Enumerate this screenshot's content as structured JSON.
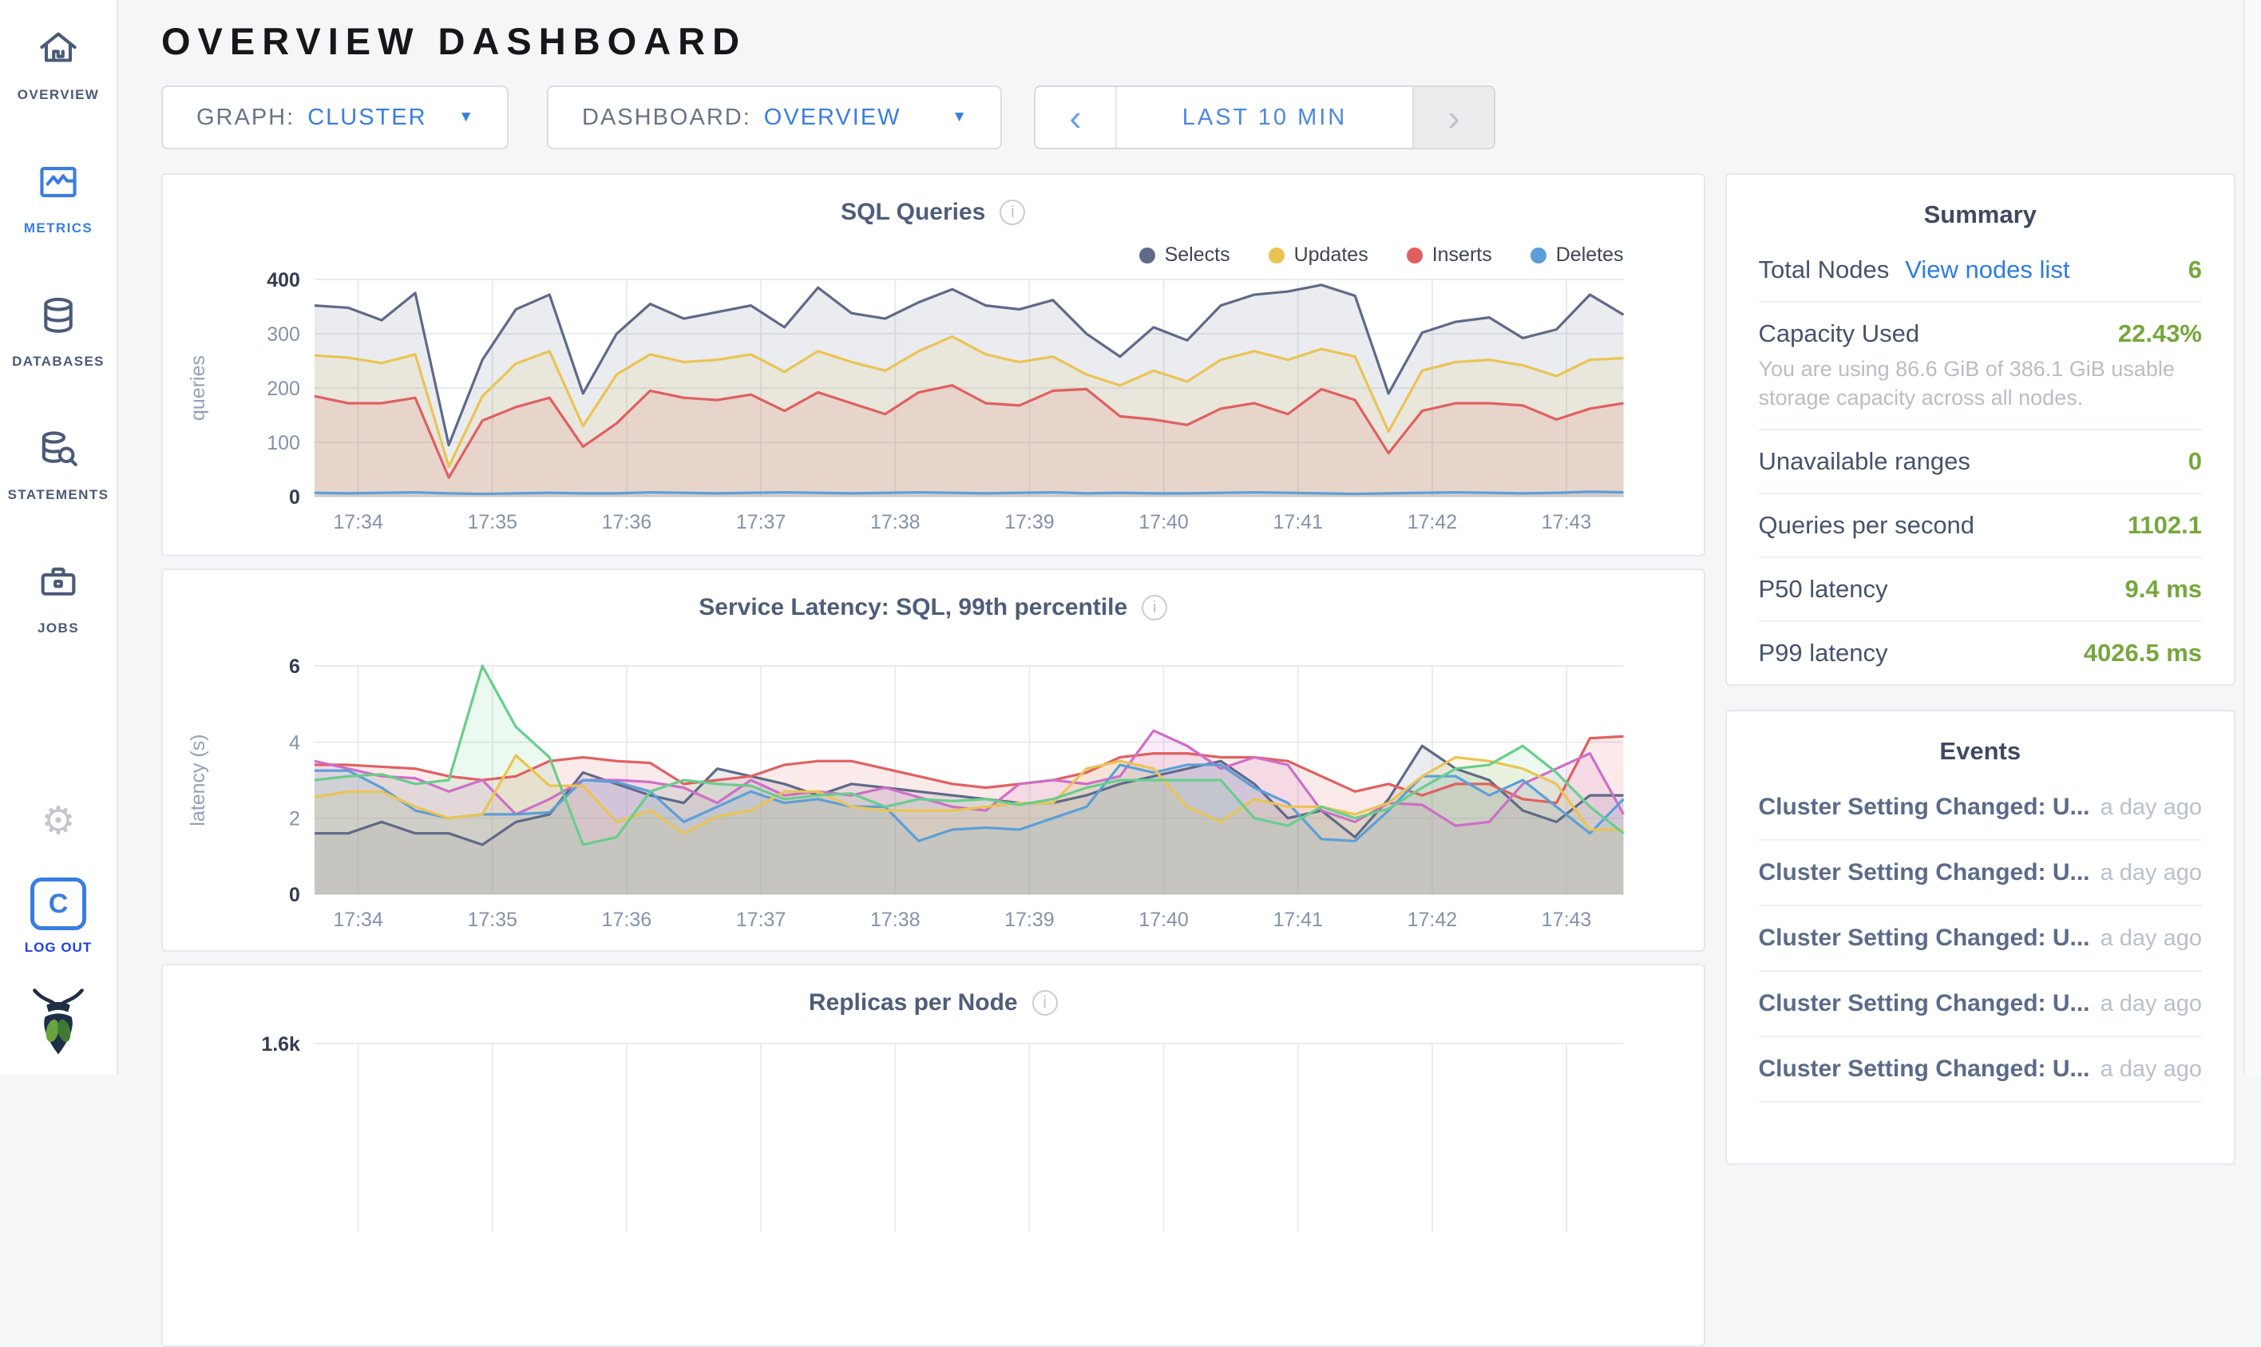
{
  "app": {
    "title": "OVERVIEW DASHBOARD"
  },
  "sidebar": {
    "items": [
      {
        "label": "OVERVIEW",
        "icon": "home-icon",
        "active": false
      },
      {
        "label": "METRICS",
        "icon": "metrics-icon",
        "active": true
      },
      {
        "label": "DATABASES",
        "icon": "databases-icon",
        "active": false
      },
      {
        "label": "STATEMENTS",
        "icon": "statements-icon",
        "active": false
      },
      {
        "label": "JOBS",
        "icon": "jobs-icon",
        "active": false
      }
    ],
    "logout_label": "LOG OUT",
    "logout_monogram": "C"
  },
  "toolbar": {
    "graph_label": "GRAPH:",
    "graph_value": "CLUSTER",
    "dashboard_label": "DASHBOARD:",
    "dashboard_value": "OVERVIEW",
    "time_range": "LAST 10 MIN",
    "prev_arrow": "‹",
    "next_arrow": "›"
  },
  "summary": {
    "title": "Summary",
    "total_nodes_label": "Total Nodes",
    "total_nodes_link": "View nodes list",
    "total_nodes_value": "6",
    "capacity_label": "Capacity Used",
    "capacity_value": "22.43%",
    "capacity_subtext": "You are using 86.6 GiB of 386.1 GiB usable storage capacity across all nodes.",
    "unavailable_label": "Unavailable ranges",
    "unavailable_value": "0",
    "qps_label": "Queries per second",
    "qps_value": "1102.1",
    "p50_label": "P50 latency",
    "p50_value": "9.4 ms",
    "p99_label": "P99 latency",
    "p99_value": "4026.5 ms"
  },
  "events": {
    "title": "Events",
    "rows": [
      {
        "text": "Cluster Setting Changed: U...",
        "time": "a day ago"
      },
      {
        "text": "Cluster Setting Changed: U...",
        "time": "a day ago"
      },
      {
        "text": "Cluster Setting Changed: U...",
        "time": "a day ago"
      },
      {
        "text": "Cluster Setting Changed: U...",
        "time": "a day ago"
      },
      {
        "text": "Cluster Setting Changed: U...",
        "time": "a day ago"
      }
    ]
  },
  "colors": {
    "accent_blue": "#3a7de1",
    "value_green": "#76a73c",
    "selects": "#5f6a88",
    "updates": "#eac453",
    "inserts": "#e06060",
    "deletes": "#5c9fd8",
    "latency_slate": "#5f6a88",
    "latency_red": "#e06060",
    "latency_magenta": "#cd6fc8",
    "latency_blue": "#5c9fd8",
    "latency_yellow": "#eac453",
    "latency_green": "#67ce8c"
  },
  "chart_data": [
    {
      "id": "sql",
      "type": "area",
      "title": "SQL Queries",
      "ylabel": "queries",
      "ylim": [
        0,
        400
      ],
      "y_ticks": [
        {
          "v": 0,
          "label": "0"
        },
        {
          "v": 100,
          "label": "100"
        },
        {
          "v": 200,
          "label": "200"
        },
        {
          "v": 300,
          "label": "300"
        },
        {
          "v": 400,
          "label": "400"
        }
      ],
      "x_ticks": [
        {
          "i": 1.3,
          "label": "17:34"
        },
        {
          "i": 5.3,
          "label": "17:35"
        },
        {
          "i": 9.3,
          "label": "17:36"
        },
        {
          "i": 13.3,
          "label": "17:37"
        },
        {
          "i": 17.3,
          "label": "17:38"
        },
        {
          "i": 21.3,
          "label": "17:39"
        },
        {
          "i": 25.3,
          "label": "17:40"
        },
        {
          "i": 29.3,
          "label": "17:41"
        },
        {
          "i": 33.3,
          "label": "17:42"
        },
        {
          "i": 37.3,
          "label": "17:43"
        }
      ],
      "legend_position": "top-right",
      "grid": true,
      "series": [
        {
          "name": "Selects",
          "color": "#5f6a88",
          "values": [
            352,
            348,
            325,
            375,
            95,
            252,
            345,
            372,
            190,
            300,
            355,
            328,
            340,
            352,
            312,
            385,
            338,
            328,
            358,
            382,
            352,
            345,
            362,
            300,
            258,
            312,
            288,
            352,
            372,
            378,
            390,
            370,
            190,
            302,
            322,
            330,
            292,
            308,
            372,
            335
          ]
        },
        {
          "name": "Updates",
          "color": "#eac453",
          "values": [
            260,
            256,
            246,
            262,
            55,
            185,
            245,
            268,
            130,
            225,
            262,
            248,
            252,
            262,
            230,
            268,
            248,
            232,
            268,
            295,
            262,
            248,
            258,
            225,
            205,
            232,
            212,
            252,
            268,
            252,
            272,
            258,
            120,
            232,
            248,
            252,
            242,
            222,
            252,
            255
          ]
        },
        {
          "name": "Inserts",
          "color": "#e06060",
          "values": [
            185,
            172,
            172,
            182,
            35,
            140,
            165,
            182,
            92,
            135,
            195,
            182,
            178,
            188,
            158,
            192,
            172,
            152,
            192,
            205,
            172,
            168,
            195,
            198,
            148,
            142,
            132,
            162,
            172,
            152,
            198,
            178,
            80,
            158,
            172,
            172,
            168,
            142,
            162,
            172
          ]
        },
        {
          "name": "Deletes",
          "color": "#5c9fd8",
          "values": [
            7,
            6,
            7,
            8,
            6,
            5,
            6,
            7,
            6,
            6,
            8,
            7,
            6,
            7,
            8,
            7,
            6,
            7,
            8,
            7,
            6,
            7,
            8,
            6,
            7,
            6,
            6,
            7,
            8,
            7,
            6,
            5,
            6,
            7,
            8,
            7,
            6,
            7,
            9,
            8
          ]
        }
      ]
    },
    {
      "id": "latency",
      "type": "area",
      "title": "Service Latency: SQL, 99th percentile",
      "ylabel": "latency (s)",
      "ylim": [
        0,
        6
      ],
      "y_ticks": [
        {
          "v": 0,
          "label": "0"
        },
        {
          "v": 2,
          "label": "2"
        },
        {
          "v": 4,
          "label": "4"
        },
        {
          "v": 6,
          "label": "6"
        }
      ],
      "x_ticks": [
        {
          "i": 1.3,
          "label": "17:34"
        },
        {
          "i": 5.3,
          "label": "17:35"
        },
        {
          "i": 9.3,
          "label": "17:36"
        },
        {
          "i": 13.3,
          "label": "17:37"
        },
        {
          "i": 17.3,
          "label": "17:38"
        },
        {
          "i": 21.3,
          "label": "17:39"
        },
        {
          "i": 25.3,
          "label": "17:40"
        },
        {
          "i": 29.3,
          "label": "17:41"
        },
        {
          "i": 33.3,
          "label": "17:42"
        },
        {
          "i": 37.3,
          "label": "17:43"
        }
      ],
      "legend_position": "none",
      "grid": true,
      "series": [
        {
          "color": "#5f6a88",
          "values": [
            1.6,
            1.6,
            1.9,
            1.6,
            1.6,
            1.3,
            1.9,
            2.1,
            3.2,
            2.9,
            2.6,
            2.4,
            3.3,
            3.1,
            2.9,
            2.6,
            2.9,
            2.8,
            2.7,
            2.6,
            2.5,
            2.4,
            2.4,
            2.6,
            2.9,
            3.1,
            3.3,
            3.5,
            2.9,
            2.0,
            2.2,
            1.5,
            2.5,
            3.9,
            3.3,
            3.0,
            2.2,
            1.9,
            2.6,
            2.6
          ]
        },
        {
          "color": "#e06060",
          "values": [
            3.4,
            3.4,
            3.35,
            3.3,
            3.1,
            3.0,
            3.1,
            3.5,
            3.6,
            3.5,
            3.45,
            2.9,
            3.0,
            3.1,
            3.4,
            3.5,
            3.5,
            3.3,
            3.1,
            2.9,
            2.8,
            2.9,
            3.0,
            3.2,
            3.6,
            3.7,
            3.7,
            3.6,
            3.6,
            3.5,
            3.1,
            2.7,
            2.9,
            2.6,
            2.9,
            2.9,
            2.5,
            2.4,
            4.1,
            4.15
          ]
        },
        {
          "color": "#cd6fc8",
          "values": [
            3.5,
            3.3,
            3.1,
            3.05,
            2.7,
            3.0,
            2.1,
            2.5,
            3.0,
            3.0,
            2.95,
            2.8,
            2.4,
            3.0,
            2.6,
            2.7,
            2.6,
            2.8,
            2.55,
            2.3,
            2.2,
            2.9,
            3.0,
            2.9,
            3.1,
            4.3,
            3.9,
            3.3,
            3.6,
            3.4,
            2.2,
            1.9,
            2.4,
            2.35,
            1.8,
            1.9,
            2.9,
            3.3,
            3.7,
            2.1
          ]
        },
        {
          "color": "#5c9fd8",
          "values": [
            3.25,
            3.25,
            2.8,
            2.2,
            2.0,
            2.1,
            2.1,
            2.15,
            3.0,
            2.95,
            2.7,
            1.9,
            2.3,
            2.7,
            2.4,
            2.5,
            2.3,
            2.3,
            1.4,
            1.7,
            1.75,
            1.7,
            2.0,
            2.3,
            3.4,
            3.2,
            3.4,
            3.4,
            2.8,
            2.4,
            1.45,
            1.4,
            2.2,
            3.1,
            3.1,
            2.6,
            3.0,
            2.3,
            1.6,
            2.5
          ]
        },
        {
          "color": "#eac453",
          "values": [
            2.55,
            2.7,
            2.7,
            2.3,
            2.0,
            2.1,
            3.65,
            2.85,
            2.85,
            1.9,
            2.2,
            1.6,
            2.05,
            2.2,
            2.7,
            2.7,
            2.3,
            2.2,
            2.2,
            2.2,
            2.3,
            2.4,
            2.4,
            3.3,
            3.5,
            3.3,
            2.3,
            1.9,
            2.5,
            2.3,
            2.3,
            2.1,
            2.4,
            3.1,
            3.6,
            3.5,
            3.3,
            2.9,
            1.7,
            1.7
          ]
        },
        {
          "color": "#67ce8c",
          "values": [
            3.0,
            3.1,
            3.15,
            2.9,
            3.0,
            6.0,
            4.4,
            3.6,
            1.3,
            1.5,
            2.7,
            3.0,
            2.9,
            2.85,
            2.5,
            2.6,
            2.65,
            2.3,
            2.5,
            2.45,
            2.5,
            2.35,
            2.5,
            2.8,
            3.0,
            3.0,
            3.0,
            3.0,
            2.0,
            1.8,
            2.3,
            2.0,
            2.25,
            2.8,
            3.3,
            3.4,
            3.9,
            3.2,
            2.3,
            1.6
          ]
        }
      ]
    },
    {
      "id": "replicas",
      "type": "line",
      "title": "Replicas per Node",
      "ylabel": "",
      "ylim": [
        0,
        1600
      ],
      "y_ticks": [
        {
          "v": 1600,
          "label": "1.6k"
        }
      ],
      "x_ticks": [
        {
          "i": 1.3,
          "label": ""
        },
        {
          "i": 5.3,
          "label": ""
        },
        {
          "i": 9.3,
          "label": ""
        },
        {
          "i": 13.3,
          "label": ""
        },
        {
          "i": 17.3,
          "label": ""
        },
        {
          "i": 21.3,
          "label": ""
        },
        {
          "i": 25.3,
          "label": ""
        },
        {
          "i": 29.3,
          "label": ""
        },
        {
          "i": 33.3,
          "label": ""
        },
        {
          "i": 37.3,
          "label": ""
        }
      ],
      "legend_position": "none",
      "grid": true,
      "series": []
    }
  ]
}
